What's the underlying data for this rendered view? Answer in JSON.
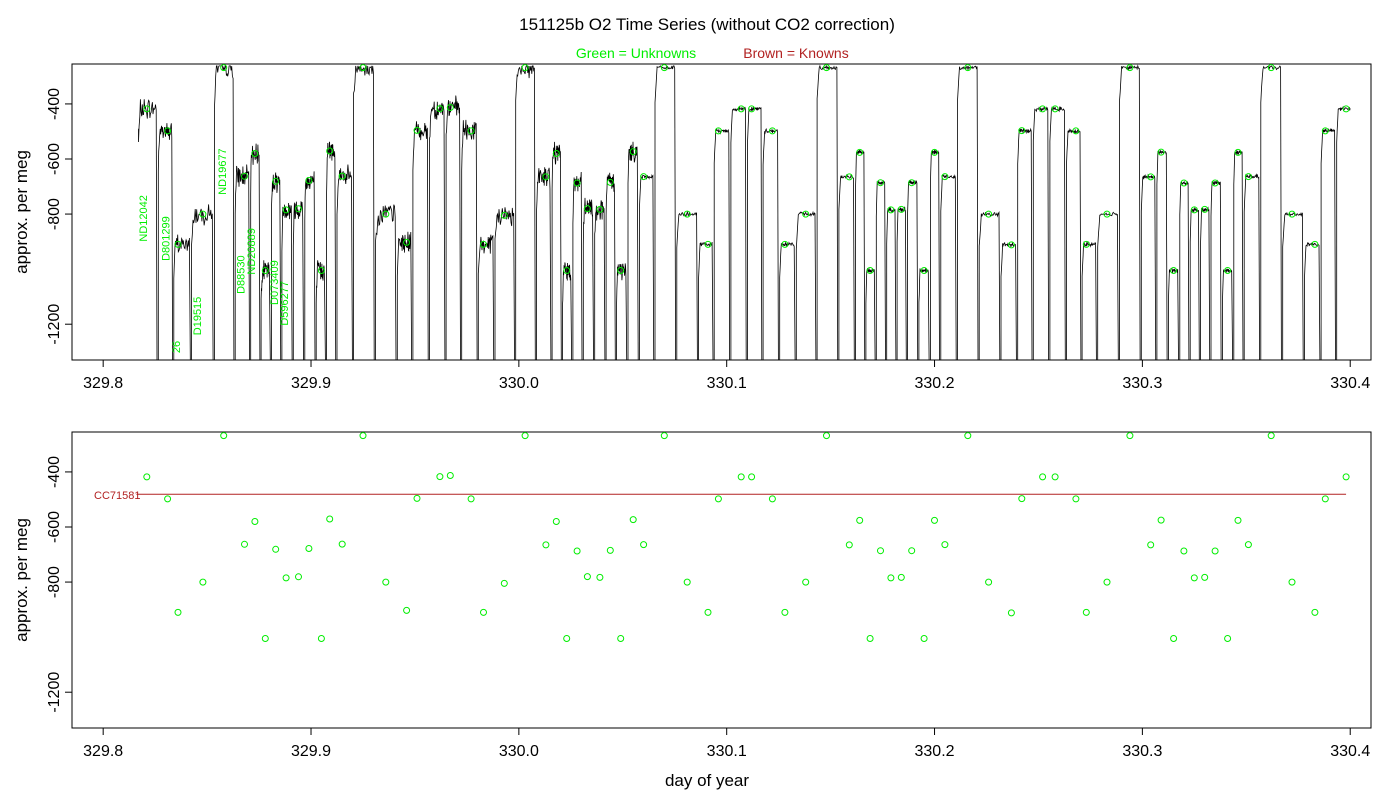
{
  "title": "151125b   O2 Time Series (without CO2 correction)",
  "legend": {
    "unknowns": "Green = Unknowns",
    "knowns": "Brown = Knowns"
  },
  "colors": {
    "unknown": "#00ee00",
    "known": "#b22222",
    "trace": "#000000",
    "axis": "#000000"
  },
  "chart_data": [
    {
      "type": "line",
      "ylabel": "approx. per meg",
      "xlim": [
        329.785,
        330.41
      ],
      "ylim": [
        -1330,
        -255
      ],
      "y_reversed": true,
      "xticks": [
        "329.8",
        "329.9",
        "330.0",
        "330.1",
        "330.2",
        "330.3",
        "330.4"
      ],
      "yticks": [
        "-400",
        "-600",
        "-800",
        "-1200"
      ],
      "sample_labels": [
        {
          "text": "ND12042",
          "x": 329.821,
          "y": -900
        },
        {
          "text": "D801299",
          "x": 329.832,
          "y": -970
        },
        {
          "text": "26",
          "x": 329.837,
          "y": -1305
        },
        {
          "text": "D19515",
          "x": 329.847,
          "y": -1240
        },
        {
          "text": "ND19677",
          "x": 329.859,
          "y": -730
        },
        {
          "text": "D88530",
          "x": 329.868,
          "y": -1090
        },
        {
          "text": "ND20889",
          "x": 329.873,
          "y": -1020
        },
        {
          "text": "D073409",
          "x": 329.884,
          "y": -1130
        },
        {
          "text": "D596277",
          "x": 329.889,
          "y": -1205
        }
      ]
    },
    {
      "type": "scatter",
      "ylabel": "approx. per meg",
      "xlabel": "day of year",
      "xlim": [
        329.785,
        330.41
      ],
      "ylim": [
        -1330,
        -255
      ],
      "y_reversed": true,
      "xticks": [
        "329.8",
        "329.9",
        "330.0",
        "330.1",
        "330.2",
        "330.3",
        "330.4"
      ],
      "yticks": [
        "-400",
        "-600",
        "-800",
        "-1200"
      ],
      "reference_line": {
        "label": "CC71581",
        "x": [
          329.816,
          330.398
        ],
        "y": [
          -481,
          -481
        ]
      },
      "points": [
        [
          329.821,
          -418
        ],
        [
          329.831,
          -498
        ],
        [
          329.836,
          -910
        ],
        [
          329.848,
          -800
        ],
        [
          329.858,
          -268
        ],
        [
          329.868,
          -663
        ],
        [
          329.873,
          -580
        ],
        [
          329.878,
          -1005
        ],
        [
          329.883,
          -681
        ],
        [
          329.888,
          -785
        ],
        [
          329.894,
          -781
        ],
        [
          329.899,
          -678
        ],
        [
          329.905,
          -1005
        ],
        [
          329.909,
          -571
        ],
        [
          329.915,
          -662
        ],
        [
          329.925,
          -268
        ],
        [
          329.936,
          -800
        ],
        [
          329.946,
          -903
        ],
        [
          329.951,
          -496
        ],
        [
          329.962,
          -417
        ],
        [
          329.967,
          -413
        ],
        [
          329.977,
          -498
        ],
        [
          329.983,
          -910
        ],
        [
          329.993,
          -805
        ],
        [
          330.003,
          -268
        ],
        [
          330.013,
          -665
        ],
        [
          330.018,
          -580
        ],
        [
          330.023,
          -1005
        ],
        [
          330.028,
          -687
        ],
        [
          330.033,
          -780
        ],
        [
          330.039,
          -783
        ],
        [
          330.044,
          -685
        ],
        [
          330.049,
          -1005
        ],
        [
          330.055,
          -573
        ],
        [
          330.06,
          -664
        ],
        [
          330.07,
          -268
        ],
        [
          330.081,
          -800
        ],
        [
          330.091,
          -910
        ],
        [
          330.096,
          -498
        ],
        [
          330.107,
          -418
        ],
        [
          330.112,
          -418
        ],
        [
          330.122,
          -498
        ],
        [
          330.128,
          -910
        ],
        [
          330.138,
          -800
        ],
        [
          330.148,
          -268
        ],
        [
          330.159,
          -665
        ],
        [
          330.164,
          -576
        ],
        [
          330.169,
          -1005
        ],
        [
          330.174,
          -686
        ],
        [
          330.179,
          -785
        ],
        [
          330.184,
          -783
        ],
        [
          330.189,
          -686
        ],
        [
          330.195,
          -1005
        ],
        [
          330.2,
          -576
        ],
        [
          330.205,
          -664
        ],
        [
          330.216,
          -268
        ],
        [
          330.226,
          -800
        ],
        [
          330.237,
          -912
        ],
        [
          330.242,
          -497
        ],
        [
          330.252,
          -418
        ],
        [
          330.258,
          -418
        ],
        [
          330.268,
          -498
        ],
        [
          330.273,
          -910
        ],
        [
          330.283,
          -800
        ],
        [
          330.294,
          -268
        ],
        [
          330.304,
          -665
        ],
        [
          330.309,
          -575
        ],
        [
          330.315,
          -1005
        ],
        [
          330.32,
          -687
        ],
        [
          330.325,
          -785
        ],
        [
          330.33,
          -783
        ],
        [
          330.335,
          -687
        ],
        [
          330.341,
          -1005
        ],
        [
          330.346,
          -576
        ],
        [
          330.351,
          -664
        ],
        [
          330.362,
          -268
        ],
        [
          330.372,
          -800
        ],
        [
          330.383,
          -910
        ],
        [
          330.388,
          -498
        ],
        [
          330.398,
          -418
        ]
      ]
    }
  ]
}
